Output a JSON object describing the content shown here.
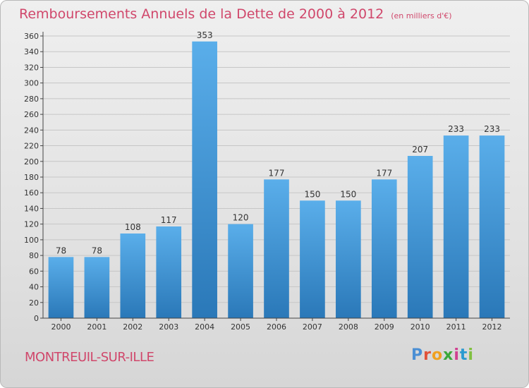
{
  "header": {
    "title": "Remboursements Annuels de la Dette de 2000 à 2012",
    "unit": "(en milliers d'€)"
  },
  "footer": {
    "commune": "MONTREUIL-SUR-ILLE",
    "logo_text": "Proxiti",
    "logo_colors": [
      "#4b8fd4",
      "#e0523a",
      "#f0a020",
      "#3aa83a",
      "#d04090",
      "#2a9ad0",
      "#80c040"
    ]
  },
  "chart_data": {
    "type": "bar",
    "title": "Remboursements Annuels de la Dette de 2000 à 2012",
    "categories": [
      "2000",
      "2001",
      "2002",
      "2003",
      "2004",
      "2005",
      "2006",
      "2007",
      "2008",
      "2009",
      "2010",
      "2011",
      "2012"
    ],
    "values": [
      78,
      78,
      108,
      117,
      353,
      120,
      177,
      150,
      150,
      177,
      207,
      233,
      233
    ],
    "ylim": [
      0,
      360
    ],
    "yticks": [
      0,
      20,
      40,
      60,
      80,
      100,
      120,
      140,
      160,
      180,
      200,
      220,
      240,
      260,
      280,
      300,
      320,
      340,
      360
    ],
    "grid": true,
    "bar_color_top": "#5aaeea",
    "bar_color_bottom": "#2a78b8"
  }
}
